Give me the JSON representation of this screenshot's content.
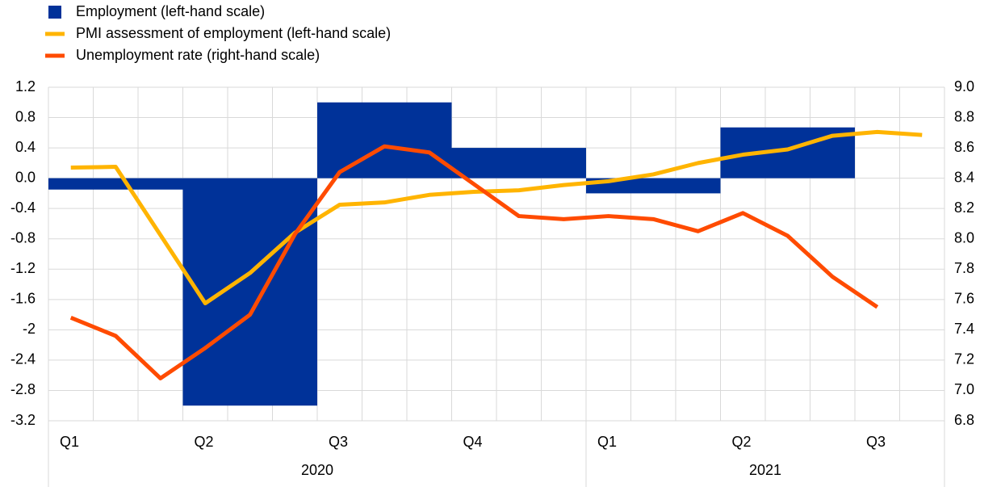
{
  "chart_data": {
    "type": "bar-line",
    "categories": [
      "Q1",
      null,
      null,
      "Q2",
      null,
      null,
      "Q3",
      null,
      null,
      "Q4",
      null,
      null,
      "Q1",
      null,
      null,
      "Q2",
      null,
      null,
      "Q3",
      null
    ],
    "year_labels": [
      "2020",
      "2021"
    ],
    "series": [
      {
        "name": "Employment (left-hand scale)",
        "type": "bar",
        "color": "#003299",
        "axis": "y",
        "values": [
          -0.15,
          null,
          null,
          -3.0,
          null,
          null,
          1.0,
          null,
          null,
          0.4,
          null,
          null,
          -0.2,
          null,
          null,
          0.67,
          null,
          null,
          null,
          null
        ]
      },
      {
        "name": "PMI assessment of employment (left-hand scale)",
        "type": "line",
        "color": "#ffb400",
        "axis": "y",
        "values": [
          0.14,
          0.15,
          -0.75,
          -1.65,
          -1.25,
          -0.72,
          -0.35,
          -0.32,
          -0.22,
          -0.18,
          -0.16,
          -0.09,
          -0.04,
          0.05,
          0.2,
          0.31,
          0.38,
          0.56,
          0.61,
          0.57
        ]
      },
      {
        "name": "Unemployment rate (right-hand scale)",
        "type": "line",
        "color": "#ff4b00",
        "axis": "y2",
        "values": [
          7.48,
          7.36,
          7.08,
          7.28,
          7.5,
          8.03,
          8.44,
          8.61,
          8.57,
          8.36,
          8.15,
          8.13,
          8.15,
          8.13,
          8.05,
          8.17,
          8.02,
          7.75,
          7.55,
          null
        ]
      }
    ],
    "ylim": [
      -3.2,
      1.2
    ],
    "yticks": [
      1.2,
      0.8,
      0.4,
      {
        "value": 0,
        "label": "0.0"
      },
      -0.4,
      -0.8,
      -1.2,
      -1.6,
      -2.0,
      -2.4,
      -2.8,
      -3.2
    ],
    "y2lim": [
      6.8,
      9.0
    ],
    "y2ticks": [
      {
        "value": 9,
        "label": "9.0"
      },
      8.8,
      8.6,
      8.4,
      8.2,
      {
        "value": 8,
        "label": "8.0"
      },
      7.8,
      7.6,
      7.4,
      7.2,
      {
        "value": 7,
        "label": "7.0"
      },
      6.8
    ],
    "grid": true,
    "legend": "top-left"
  }
}
